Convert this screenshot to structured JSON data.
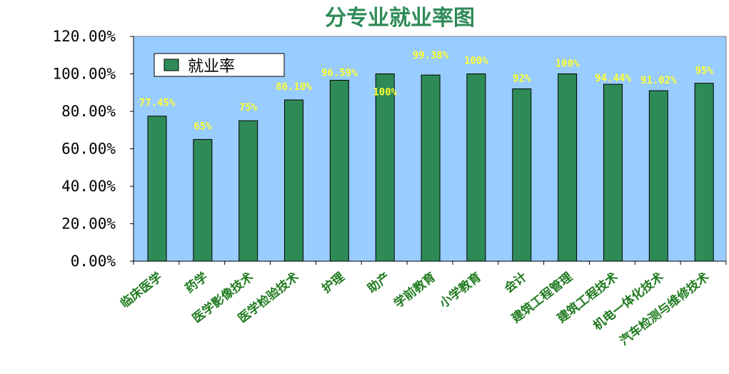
{
  "chart_data": {
    "type": "bar",
    "title": "分专业就业率图",
    "categories": [
      "临床医学",
      "药学",
      "医学影像技术",
      "医学检验技术",
      "护理",
      "助产",
      "学前教育",
      "小学教育",
      "会计",
      "建筑工程管理",
      "建筑工程技术",
      "机电一体化技术",
      "汽车检测与维修技术"
    ],
    "series": [
      {
        "name": "就业率",
        "values": [
          77.45,
          65,
          75,
          86.1,
          96.59,
          100,
          99.38,
          100,
          92,
          100,
          94.44,
          91.02,
          95
        ],
        "labels": [
          "77.45%",
          "65%",
          "75%",
          "86.10%",
          "96.59%",
          "100%",
          "99.38%",
          "100%",
          "92%",
          "100%",
          "94.44%",
          "91.02%",
          "95%"
        ]
      }
    ],
    "yticks": [
      "0.00%",
      "20.00%",
      "40.00%",
      "60.00%",
      "80.00%",
      "100.00%",
      "120.00%"
    ],
    "ylim": [
      0,
      120
    ],
    "xlabel": "",
    "ylabel": "",
    "legend": "top-left",
    "grid": false,
    "colors": {
      "bar": "#2e8b57",
      "bar_edge": "#000000",
      "plot_bg": "#99ccff",
      "label": "#ffff33",
      "title": "#2e8b57",
      "category": "#1f7a1f"
    }
  }
}
